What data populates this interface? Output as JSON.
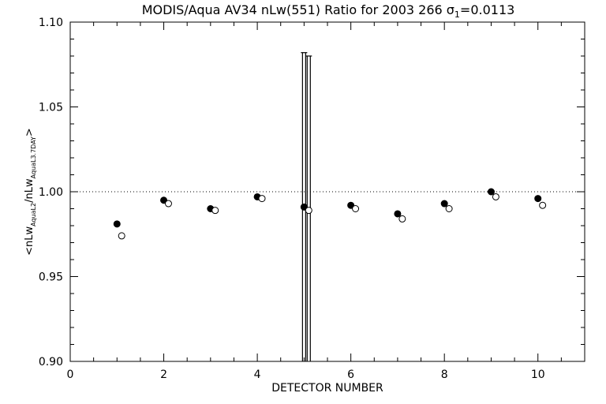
{
  "chart_data": {
    "type": "scatter",
    "title": "MODIS/Aqua AV34 nLw(551) Ratio for 2003 266 σ",
    "title_sigma_sub": "1",
    "title_value": "=0.0113",
    "xlabel": "DETECTOR NUMBER",
    "ylabel_prefix": "<nLw",
    "ylabel_sub1": "AquaL2",
    "ylabel_mid": "/nLw",
    "ylabel_sub2": "AquaL3.7DAY",
    "ylabel_suffix": ">",
    "xlim": [
      0,
      11
    ],
    "ylim": [
      0.9,
      1.1
    ],
    "xticks": [
      0,
      2,
      4,
      6,
      8,
      10
    ],
    "xtick_labels": [
      "0",
      "2",
      "4",
      "6",
      "8",
      "10"
    ],
    "yticks": [
      0.9,
      0.95,
      1.0,
      1.05,
      1.1
    ],
    "ytick_labels": [
      "0.90",
      "0.95",
      "1.00",
      "1.05",
      "1.10"
    ],
    "reference_line": 1.0,
    "grid": false,
    "series": [
      {
        "marker": "filled-circle",
        "x": [
          1,
          2,
          3,
          4,
          5,
          6,
          7,
          8,
          9,
          10
        ],
        "y": [
          0.981,
          0.995,
          0.99,
          0.997,
          0.991,
          0.992,
          0.987,
          0.993,
          1.0,
          0.996
        ],
        "error_bars": [
          null,
          null,
          null,
          null,
          [
            0.9,
            1.082
          ],
          null,
          null,
          null,
          null,
          null
        ]
      },
      {
        "marker": "open-circle",
        "x": [
          1.1,
          2.1,
          3.1,
          4.1,
          5.1,
          6.1,
          7.1,
          8.1,
          9.1,
          10.1
        ],
        "y": [
          0.974,
          0.993,
          0.989,
          0.996,
          0.989,
          0.99,
          0.984,
          0.99,
          0.997,
          0.992
        ],
        "error_bars": [
          null,
          null,
          null,
          null,
          [
            0.9,
            1.08
          ],
          null,
          null,
          null,
          null,
          null
        ]
      }
    ]
  }
}
